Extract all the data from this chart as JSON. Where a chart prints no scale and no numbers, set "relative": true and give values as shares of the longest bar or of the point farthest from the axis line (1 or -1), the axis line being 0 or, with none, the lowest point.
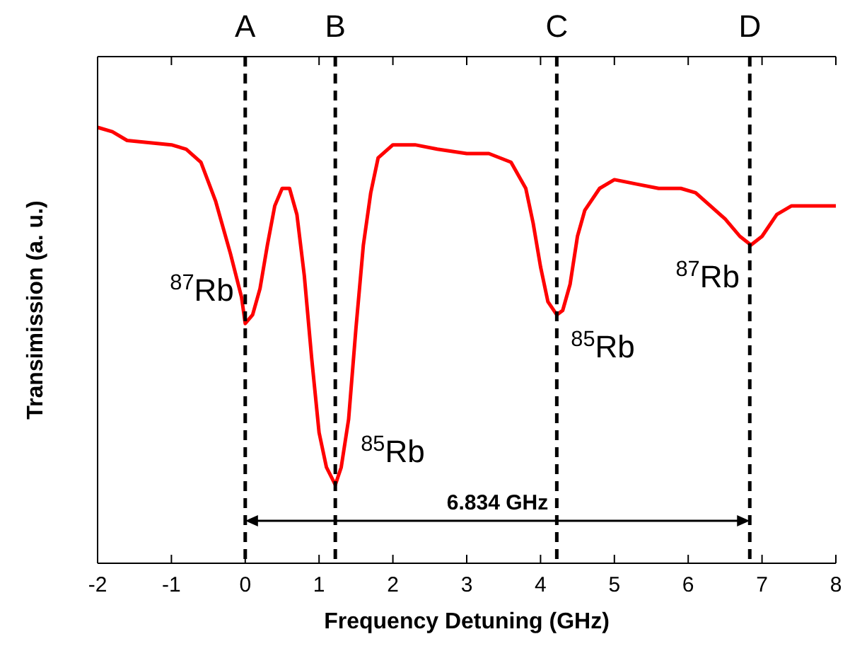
{
  "chart_data": {
    "type": "line",
    "relative": true,
    "xlabel": "Frequency Detuning  (GHz)",
    "ylabel": "Transimission  (a. u.)",
    "xlim": [
      -2,
      8
    ],
    "xticks": [
      -2,
      -1,
      0,
      1,
      2,
      3,
      4,
      5,
      6,
      7,
      8
    ],
    "grid": false,
    "line_style": "solid",
    "series": [
      {
        "color": "#ff0000",
        "x": [
          -2,
          -1.8,
          -1.6,
          -1,
          -0.8,
          -0.6,
          -0.4,
          -0.2,
          -0.05,
          0,
          0.1,
          0.2,
          0.3,
          0.4,
          0.5,
          0.6,
          0.7,
          0.8,
          0.9,
          1,
          1.1,
          1.22,
          1.3,
          1.4,
          1.5,
          1.6,
          1.7,
          1.8,
          2,
          2.3,
          2.6,
          3,
          3.3,
          3.6,
          3.8,
          3.9,
          4,
          4.1,
          4.22,
          4.3,
          4.4,
          4.5,
          4.6,
          4.8,
          5,
          5.3,
          5.6,
          5.9,
          6.1,
          6.3,
          6.5,
          6.7,
          6.85,
          7,
          7.2,
          7.4,
          7.6,
          8
        ],
        "values": [
          1,
          0.99,
          0.97,
          0.96,
          0.95,
          0.92,
          0.83,
          0.71,
          0.61,
          0.55,
          0.57,
          0.63,
          0.73,
          0.82,
          0.86,
          0.86,
          0.8,
          0.66,
          0.47,
          0.3,
          0.22,
          0.18,
          0.22,
          0.33,
          0.54,
          0.73,
          0.85,
          0.93,
          0.96,
          0.96,
          0.95,
          0.94,
          0.94,
          0.92,
          0.86,
          0.78,
          0.68,
          0.6,
          0.57,
          0.58,
          0.64,
          0.75,
          0.81,
          0.86,
          0.88,
          0.87,
          0.86,
          0.86,
          0.85,
          0.82,
          0.79,
          0.75,
          0.73,
          0.75,
          0.8,
          0.82,
          0.82,
          0.82
        ]
      }
    ],
    "ref_lines": [
      {
        "axis": "x",
        "value": 0,
        "label": "A",
        "color": "#000000",
        "line_style": "dashed"
      },
      {
        "axis": "x",
        "value": 1.22,
        "label": "B",
        "color": "#000000",
        "line_style": "dashed"
      },
      {
        "axis": "x",
        "value": 4.22,
        "label": "C",
        "color": "#000000",
        "line_style": "dashed"
      },
      {
        "axis": "x",
        "value": 6.834,
        "label": "D",
        "color": "#000000",
        "line_style": "dashed"
      }
    ],
    "annotations": [
      {
        "text": "$^{87}$Rb",
        "x": 0,
        "y": 0.55
      },
      {
        "text": "$^{85}$Rb",
        "x": 1.22,
        "y": 0.18
      },
      {
        "text": "$^{85}$Rb",
        "x": 4.22,
        "y": 0.57
      },
      {
        "text": "$^{87}$Rb",
        "x": 6.85,
        "y": 0.73
      },
      "6.834 GHz"
    ]
  }
}
